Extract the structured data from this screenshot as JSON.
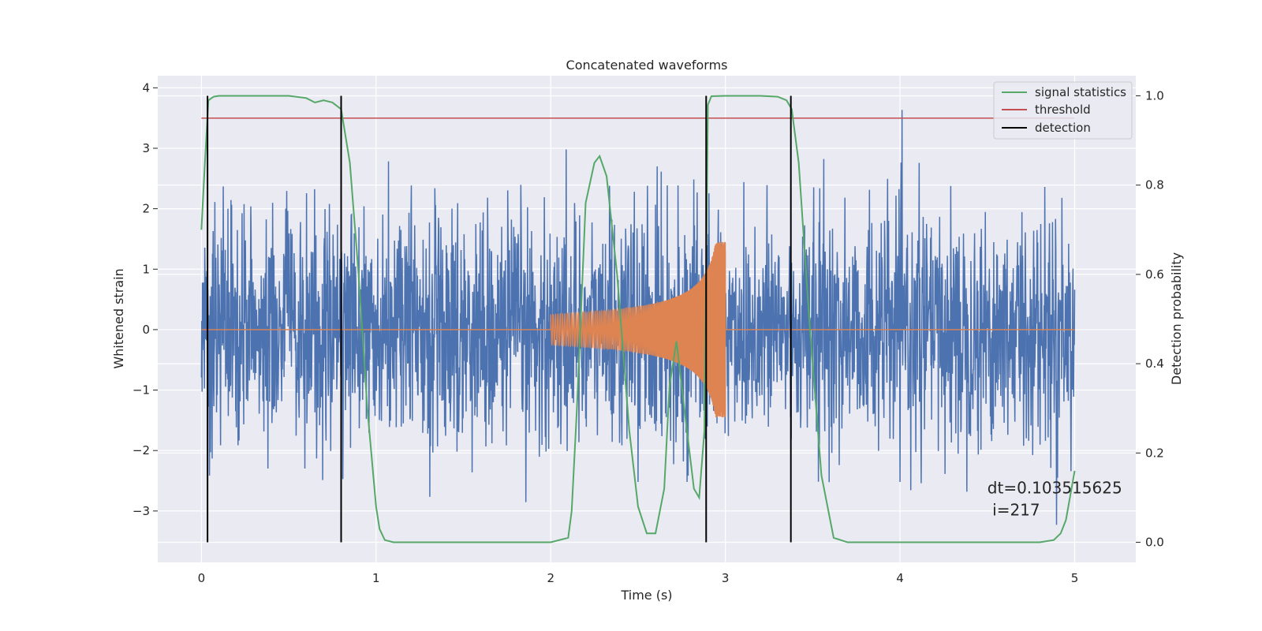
{
  "chart_data": {
    "type": "line",
    "title": "Concatenated waveforms",
    "xlabel": "Time (s)",
    "ylabel_left": "Whitened strain",
    "ylabel_right": "Detection probability",
    "xlim": [
      -0.25,
      5.35
    ],
    "ylim_left": [
      -3.85,
      4.2
    ],
    "ylim_right": [
      -0.045,
      1.045
    ],
    "x_ticks": [
      0,
      1,
      2,
      3,
      4,
      5
    ],
    "y_left_ticks": [
      -3,
      -2,
      -1,
      0,
      1,
      2,
      3,
      4
    ],
    "y_right_ticks": [
      0.0,
      0.2,
      0.4,
      0.6,
      0.8,
      1.0
    ],
    "x_tick_labels": [
      "0",
      "1",
      "2",
      "3",
      "4",
      "5"
    ],
    "y_left_tick_labels": [
      "−3",
      "−2",
      "−1",
      "0",
      "1",
      "2",
      "3",
      "4"
    ],
    "y_right_tick_labels": [
      "0.0",
      "0.2",
      "0.4",
      "0.6",
      "0.8",
      "1.0"
    ],
    "grid": true,
    "legend_position": "top-right",
    "series": [
      {
        "name": "signal statistics",
        "axis": "right",
        "color": "#55a868",
        "x": [
          0.0,
          0.02,
          0.04,
          0.07,
          0.1,
          0.2,
          0.5,
          0.6,
          0.65,
          0.7,
          0.75,
          0.8,
          0.85,
          0.9,
          0.95,
          1.0,
          1.02,
          1.05,
          1.1,
          1.5,
          1.6,
          1.8,
          2.0,
          2.1,
          2.12,
          2.15,
          2.2,
          2.25,
          2.28,
          2.32,
          2.38,
          2.45,
          2.5,
          2.55,
          2.6,
          2.65,
          2.68,
          2.72,
          2.78,
          2.82,
          2.85,
          2.88,
          2.9,
          2.92,
          3.0,
          3.2,
          3.3,
          3.35,
          3.38,
          3.42,
          3.48,
          3.55,
          3.62,
          3.7,
          4.0,
          4.5,
          4.8,
          4.88,
          4.92,
          4.95,
          5.0
        ],
        "y": [
          0.7,
          0.85,
          0.99,
          0.998,
          1.0,
          1.0,
          1.0,
          0.995,
          0.985,
          0.99,
          0.985,
          0.97,
          0.85,
          0.6,
          0.3,
          0.08,
          0.03,
          0.005,
          0.0,
          0.0,
          0.0,
          0.0,
          0.0,
          0.01,
          0.07,
          0.3,
          0.76,
          0.85,
          0.865,
          0.82,
          0.6,
          0.25,
          0.08,
          0.02,
          0.02,
          0.12,
          0.35,
          0.45,
          0.25,
          0.12,
          0.1,
          0.25,
          0.98,
          0.999,
          1.0,
          1.0,
          0.998,
          0.99,
          0.97,
          0.85,
          0.5,
          0.15,
          0.01,
          0.0,
          0.0,
          0.0,
          0.0,
          0.005,
          0.02,
          0.05,
          0.16
        ]
      },
      {
        "name": "threshold",
        "axis": "right",
        "color": "#c44e52",
        "value": 0.95,
        "x_range": [
          0.0,
          5.0
        ]
      },
      {
        "name": "detection",
        "axis": "right",
        "color": "#000000",
        "x": [
          0.035,
          0.8,
          2.89,
          3.375
        ],
        "y_range": [
          0.0,
          1.0
        ]
      },
      {
        "name": "",
        "axis": "left",
        "color": "#4c72b0",
        "kind": "noise",
        "x_range": [
          0.0,
          5.0
        ]
      },
      {
        "name": "",
        "axis": "left",
        "color": "#dd8452",
        "kind": "chirp",
        "x_range": [
          0.0,
          5.0
        ],
        "chirp_range": [
          2.0,
          3.0
        ]
      }
    ],
    "annotations": [
      {
        "text": "dt=0.103515625",
        "x": 4.5,
        "y_right": 0.11
      },
      {
        "text": " i=217",
        "x": 4.5,
        "y_right": 0.06
      }
    ]
  }
}
